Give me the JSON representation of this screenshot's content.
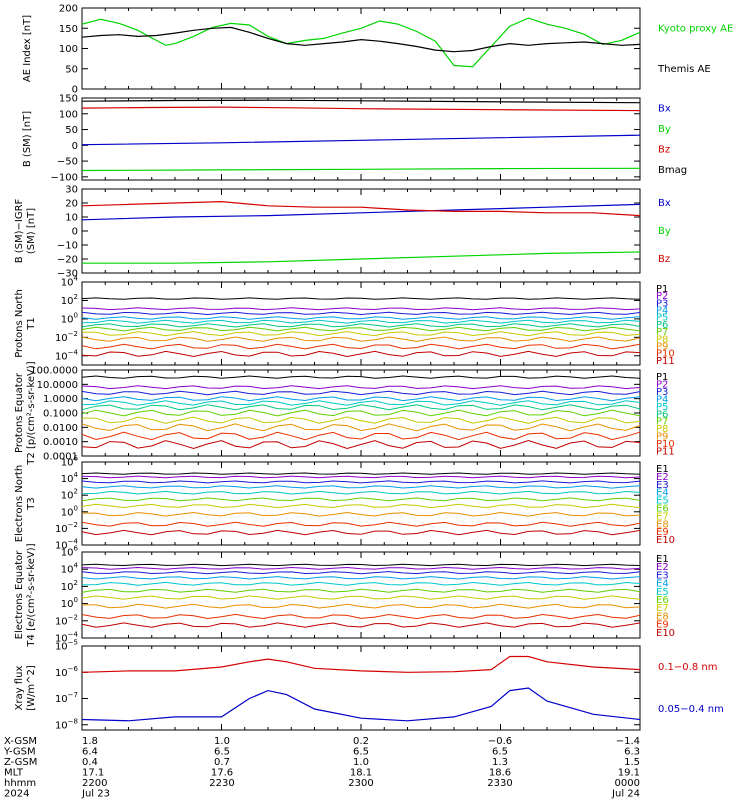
{
  "colors": {
    "black": "#000000",
    "red": "#d40000",
    "green": "#00d400",
    "blue": "#0000c8",
    "spectrum": [
      "#000000",
      "#8a00c8",
      "#1a1ad8",
      "#00a0e8",
      "#00c8c8",
      "#00c880",
      "#60d000",
      "#c8c800",
      "#e89000",
      "#e83000",
      "#c00000"
    ]
  },
  "chart_data": [
    {
      "type": "line",
      "ylabel": "AE Index [nT]",
      "yticks": [
        "200",
        "150",
        "100",
        "50",
        "0"
      ],
      "ylim": [
        0,
        200
      ],
      "series": [
        {
          "name": "Kyoto proxy AE",
          "color": "green",
          "x": [
            0,
            4,
            8,
            12,
            16,
            18,
            20,
            24,
            28,
            32,
            36,
            40,
            44,
            48,
            52,
            56,
            60,
            64,
            68,
            72,
            76,
            80,
            84,
            88,
            92,
            96,
            100,
            104,
            108,
            112,
            116,
            120
          ],
          "y": [
            160,
            172,
            162,
            145,
            120,
            108,
            112,
            130,
            152,
            162,
            158,
            130,
            112,
            120,
            125,
            138,
            150,
            168,
            160,
            142,
            118,
            58,
            55,
            105,
            155,
            175,
            160,
            150,
            135,
            110,
            120,
            140
          ]
        },
        {
          "name": "Themis AE",
          "color": "black",
          "x": [
            0,
            4,
            8,
            12,
            16,
            20,
            24,
            28,
            32,
            36,
            40,
            44,
            48,
            52,
            56,
            60,
            64,
            68,
            72,
            76,
            80,
            84,
            88,
            92,
            96,
            100,
            104,
            108,
            112,
            116,
            120
          ],
          "y": [
            128,
            132,
            134,
            130,
            132,
            138,
            145,
            150,
            152,
            140,
            125,
            112,
            108,
            112,
            116,
            122,
            118,
            112,
            105,
            96,
            92,
            95,
            105,
            112,
            108,
            112,
            114,
            116,
            112,
            108,
            110
          ]
        }
      ]
    },
    {
      "type": "line",
      "ylabel": "B (SM) [nT]",
      "yticks": [
        "150",
        "100",
        "50",
        "0",
        "−50",
        "−100"
      ],
      "ylim": [
        -110,
        150
      ],
      "series": [
        {
          "name": "Bx",
          "color": "blue",
          "x": [
            0,
            30,
            60,
            90,
            120
          ],
          "y": [
            2,
            8,
            16,
            24,
            32
          ]
        },
        {
          "name": "By",
          "color": "green",
          "x": [
            0,
            30,
            60,
            90,
            120
          ],
          "y": [
            -80,
            -78,
            -76,
            -74,
            -73
          ]
        },
        {
          "name": "Bz",
          "color": "red",
          "x": [
            0,
            15,
            30,
            45,
            60,
            90,
            120
          ],
          "y": [
            118,
            120,
            121,
            119,
            116,
            113,
            110
          ]
        },
        {
          "name": "Bmag",
          "color": "black",
          "x": [
            0,
            20,
            40,
            60,
            80,
            100,
            120
          ],
          "y": [
            140,
            142,
            143,
            141,
            139,
            137,
            135
          ]
        }
      ]
    },
    {
      "type": "line",
      "ylabel": "B (SM)−IGRF (SM) [nT]",
      "yticks": [
        "30",
        "20",
        "10",
        "0",
        "−10",
        "−20",
        "−30"
      ],
      "ylim": [
        -30,
        30
      ],
      "series": [
        {
          "name": "Bx",
          "color": "blue",
          "x": [
            0,
            20,
            40,
            60,
            80,
            100,
            120
          ],
          "y": [
            8,
            10,
            11,
            13,
            15,
            17,
            19
          ]
        },
        {
          "name": "By",
          "color": "green",
          "x": [
            0,
            20,
            40,
            60,
            80,
            100,
            120
          ],
          "y": [
            -23,
            -23,
            -22,
            -20,
            -18,
            -16,
            -15
          ]
        },
        {
          "name": "Bz",
          "color": "red",
          "x": [
            0,
            10,
            20,
            30,
            40,
            50,
            60,
            70,
            80,
            90,
            100,
            110,
            120
          ],
          "y": [
            18,
            19,
            20,
            21,
            18,
            17,
            17,
            15,
            14,
            14,
            13,
            13,
            11
          ]
        }
      ]
    },
    {
      "type": "line",
      "log": true,
      "ylabel": "Protons North T1",
      "yticks_exp": [
        4,
        2,
        0,
        -2,
        -4
      ],
      "ylim_exp": [
        -5,
        4
      ],
      "channel_labels": [
        "P1",
        "P2",
        "P3",
        "P4",
        "P5",
        "P6",
        "P7",
        "P8",
        "P9",
        "P10",
        "P11"
      ],
      "levels_exp": [
        2.2,
        1.1,
        0.6,
        0.1,
        -0.3,
        -0.7,
        -1.1,
        -1.6,
        -2.2,
        -3.0,
        -3.8
      ]
    },
    {
      "type": "line",
      "log": true,
      "ylabel": "Protons Equator T2 [p/(cm²-s-sr-keV)]",
      "yticks": [
        "100.0000",
        "10.0000",
        "1.0000",
        "0.1000",
        "0.0100",
        "0.0010",
        "0.0001"
      ],
      "ylim_exp": [
        -4,
        2
      ],
      "channel_labels": [
        "P1",
        "P2",
        "P3",
        "P4",
        "P5",
        "P6",
        "P7",
        "P8",
        "P9",
        "P10",
        "P11"
      ],
      "levels_exp": [
        1.5,
        0.8,
        0.4,
        0.0,
        -0.3,
        -0.6,
        -1.0,
        -1.5,
        -2.0,
        -2.6,
        -3.2
      ]
    },
    {
      "type": "line",
      "log": true,
      "ylabel": "Electrons North T3",
      "yticks_exp": [
        6,
        4,
        2,
        0,
        -2,
        -4
      ],
      "ylim_exp": [
        -4,
        6
      ],
      "channel_labels": [
        "E1",
        "E2",
        "E3",
        "E4",
        "E5",
        "E6",
        "E7",
        "E8",
        "E9",
        "E10"
      ],
      "levels_exp": [
        4.6,
        4.2,
        3.6,
        3.0,
        2.3,
        1.5,
        0.7,
        -0.3,
        -1.5,
        -2.5
      ]
    },
    {
      "type": "line",
      "log": true,
      "ylabel": "Electrons Equator T4 [e/(cm²-s-sr-keV)]",
      "yticks_exp": [
        6,
        4,
        2,
        0,
        -2,
        -4
      ],
      "ylim_exp": [
        -4,
        6
      ],
      "channel_labels": [
        "E1",
        "E2",
        "E3",
        "E4",
        "E5",
        "E6",
        "E7",
        "E8",
        "E9",
        "E10"
      ],
      "levels_exp": [
        4.5,
        4.1,
        3.6,
        3.0,
        2.3,
        1.5,
        0.7,
        -0.3,
        -1.5,
        -2.5
      ]
    },
    {
      "type": "line",
      "log": true,
      "ylabel": "Xray flux [W/m^2]",
      "yticks_exp": [
        -5,
        -6,
        -7,
        -8
      ],
      "ylim_exp": [
        -8.2,
        -5
      ],
      "series": [
        {
          "name": "0.1−0.8 nm",
          "color": "red",
          "x": [
            0,
            10,
            20,
            30,
            36,
            40,
            44,
            50,
            60,
            70,
            80,
            88,
            92,
            96,
            100,
            110,
            120
          ],
          "y": [
            -6.0,
            -5.95,
            -5.95,
            -5.8,
            -5.6,
            -5.5,
            -5.6,
            -5.85,
            -5.95,
            -6.0,
            -5.98,
            -5.9,
            -5.4,
            -5.4,
            -5.6,
            -5.8,
            -5.9
          ]
        },
        {
          "name": "0.05−0.4 nm",
          "color": "blue",
          "x": [
            0,
            10,
            20,
            30,
            36,
            40,
            44,
            50,
            60,
            70,
            80,
            88,
            92,
            96,
            100,
            110,
            120
          ],
          "y": [
            -7.8,
            -7.85,
            -7.7,
            -7.7,
            -7.0,
            -6.7,
            -6.85,
            -7.4,
            -7.75,
            -7.85,
            -7.7,
            -7.3,
            -6.7,
            -6.6,
            -7.1,
            -7.6,
            -7.8
          ]
        }
      ]
    }
  ],
  "footer": {
    "rows": [
      {
        "label": "X-GSM",
        "values": [
          "1.8",
          "1.0",
          "0.2",
          "−0.6",
          "−1.4"
        ]
      },
      {
        "label": "Y-GSM",
        "values": [
          "6.4",
          "6.5",
          "6.5",
          "6.5",
          "6.3"
        ]
      },
      {
        "label": "Z-GSM",
        "values": [
          "0.4",
          "0.7",
          "1.0",
          "1.3",
          "1.5"
        ]
      },
      {
        "label": "MLT",
        "values": [
          "17.1",
          "17.6",
          "18.1",
          "18.6",
          "19.1"
        ]
      },
      {
        "label": "hhmm",
        "values": [
          "2200",
          "2230",
          "2300",
          "2330",
          "0000"
        ]
      },
      {
        "label": "2024",
        "values": [
          "Jul 23",
          "",
          "",
          "",
          "Jul 24"
        ]
      }
    ]
  }
}
